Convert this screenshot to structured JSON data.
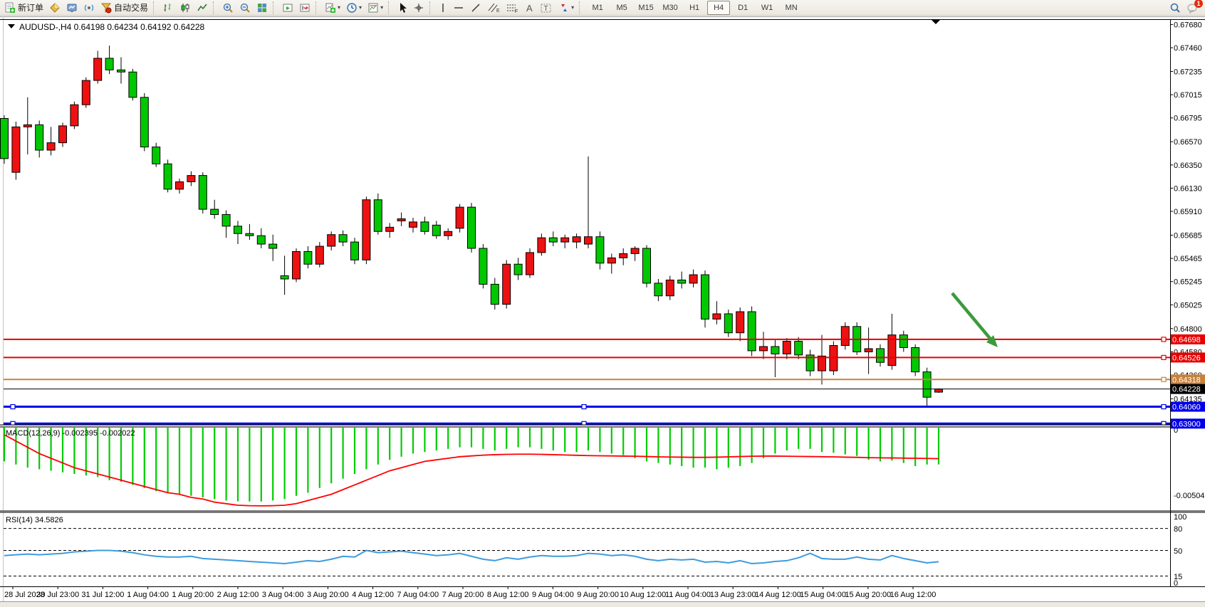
{
  "toolbar": {
    "new_order_label": "新订单",
    "autotrading_label": "自动交易",
    "timeframes": [
      "M1",
      "M5",
      "M15",
      "M30",
      "H1",
      "H4",
      "D1",
      "W1",
      "MN"
    ],
    "active_timeframe": "H4",
    "notification_badge": "1"
  },
  "chart": {
    "symbol": "AUDUSD-,H4",
    "open": "0.64198",
    "high": "0.64234",
    "low": "0.64192",
    "close": "0.64228"
  },
  "price_axis": {
    "ticks": [
      "0.67680",
      "0.67460",
      "0.67235",
      "0.67015",
      "0.66795",
      "0.66570",
      "0.66350",
      "0.66130",
      "0.65910",
      "0.65685",
      "0.65465",
      "0.65245",
      "0.65025",
      "0.64800",
      "0.64580",
      "0.64360",
      "0.64135"
    ]
  },
  "time_axis": {
    "labels": [
      "28 Jul 2023",
      "30 Jul 23:00",
      "31 Jul 12:00",
      "1 Aug 04:00",
      "1 Aug 20:00",
      "2 Aug 12:00",
      "3 Aug 04:00",
      "3 Aug 20:00",
      "4 Aug 12:00",
      "7 Aug 04:00",
      "7 Aug 20:00",
      "8 Aug 12:00",
      "9 Aug 04:00",
      "9 Aug 20:00",
      "10 Aug 12:00",
      "11 Aug 04:00",
      "13 Aug 23:00",
      "14 Aug 12:00",
      "15 Aug 04:00",
      "15 Aug 20:00",
      "16 Aug 12:00"
    ]
  },
  "hlines": [
    {
      "price": 0.64698,
      "label": "0.64698",
      "color": "#E80000",
      "width": 2
    },
    {
      "price": 0.64526,
      "label": "0.64526",
      "color": "#E80000",
      "width": 2
    },
    {
      "price": 0.64318,
      "label": "0.64318",
      "color": "#C8823C",
      "width": 2
    },
    {
      "price": 0.64228,
      "label": "0.64228",
      "color": "#000000",
      "width": 1
    },
    {
      "price": 0.6406,
      "label": "0.64060",
      "color": "#0000E8",
      "width": 3
    },
    {
      "price": 0.639,
      "label": "0.63900",
      "color": "#0000E8",
      "width": 3
    }
  ],
  "chart_data": {
    "type": "candlestick",
    "title": "AUDUSD-,H4  0.64198 0.64234 0.64192 0.64228",
    "symbol": "AUDUSD",
    "timeframe": "H4",
    "up_color": "#EE1111",
    "down_color": "#00C800",
    "ylim": [
      0.6388,
      0.6773
    ],
    "candles": [
      [
        0.6679,
        0.6682,
        0.6636,
        0.6641
      ],
      [
        0.6628,
        0.6676,
        0.6621,
        0.6671
      ],
      [
        0.6671,
        0.6699,
        0.6645,
        0.6673
      ],
      [
        0.6673,
        0.6677,
        0.6642,
        0.6649
      ],
      [
        0.6649,
        0.6671,
        0.6644,
        0.6656
      ],
      [
        0.6656,
        0.6675,
        0.6652,
        0.6672
      ],
      [
        0.6672,
        0.6695,
        0.6669,
        0.6692
      ],
      [
        0.6692,
        0.6718,
        0.6689,
        0.6715
      ],
      [
        0.6715,
        0.6743,
        0.6712,
        0.6736
      ],
      [
        0.6736,
        0.6748,
        0.6721,
        0.6725
      ],
      [
        0.6725,
        0.6737,
        0.6712,
        0.6723
      ],
      [
        0.6723,
        0.6726,
        0.6696,
        0.6699
      ],
      [
        0.6699,
        0.6703,
        0.6648,
        0.6652
      ],
      [
        0.6652,
        0.6656,
        0.6633,
        0.6636
      ],
      [
        0.6636,
        0.664,
        0.6609,
        0.6612
      ],
      [
        0.6612,
        0.6622,
        0.6608,
        0.6619
      ],
      [
        0.6619,
        0.6629,
        0.6615,
        0.6625
      ],
      [
        0.6625,
        0.6628,
        0.6589,
        0.6593
      ],
      [
        0.6593,
        0.6602,
        0.6584,
        0.6588
      ],
      [
        0.6588,
        0.6592,
        0.6566,
        0.6577
      ],
      [
        0.6577,
        0.6582,
        0.656,
        0.657
      ],
      [
        0.657,
        0.6579,
        0.6564,
        0.6568
      ],
      [
        0.6568,
        0.6575,
        0.6556,
        0.656
      ],
      [
        0.656,
        0.6569,
        0.6544,
        0.6556
      ],
      [
        0.653,
        0.6549,
        0.6512,
        0.6527
      ],
      [
        0.6527,
        0.6556,
        0.6524,
        0.6553
      ],
      [
        0.6553,
        0.6558,
        0.6537,
        0.6541
      ],
      [
        0.6541,
        0.6562,
        0.6538,
        0.6558
      ],
      [
        0.6558,
        0.6572,
        0.6554,
        0.6569
      ],
      [
        0.6569,
        0.6573,
        0.6558,
        0.6562
      ],
      [
        0.6562,
        0.6566,
        0.6541,
        0.6545
      ],
      [
        0.6545,
        0.6605,
        0.6541,
        0.6602
      ],
      [
        0.6602,
        0.6608,
        0.6569,
        0.6572
      ],
      [
        0.6572,
        0.658,
        0.6566,
        0.6576
      ],
      [
        0.6582,
        0.659,
        0.6577,
        0.6584
      ],
      [
        0.6576,
        0.6585,
        0.6571,
        0.6581
      ],
      [
        0.6581,
        0.6586,
        0.6569,
        0.6572
      ],
      [
        0.6578,
        0.6582,
        0.6565,
        0.6568
      ],
      [
        0.6568,
        0.6575,
        0.6564,
        0.6572
      ],
      [
        0.6575,
        0.6598,
        0.6571,
        0.6595
      ],
      [
        0.6595,
        0.6599,
        0.6552,
        0.6556
      ],
      [
        0.6556,
        0.656,
        0.6518,
        0.6522
      ],
      [
        0.6522,
        0.6528,
        0.6498,
        0.6503
      ],
      [
        0.6503,
        0.6545,
        0.6499,
        0.6541
      ],
      [
        0.6541,
        0.6547,
        0.6526,
        0.6531
      ],
      [
        0.6531,
        0.6556,
        0.6528,
        0.6552
      ],
      [
        0.6552,
        0.657,
        0.6549,
        0.6566
      ],
      [
        0.6566,
        0.6572,
        0.6558,
        0.6562
      ],
      [
        0.6562,
        0.6569,
        0.6556,
        0.6566
      ],
      [
        0.6562,
        0.657,
        0.6556,
        0.6567
      ],
      [
        0.656,
        0.6643,
        0.6556,
        0.6567
      ],
      [
        0.6567,
        0.6572,
        0.6536,
        0.6542
      ],
      [
        0.6542,
        0.6551,
        0.6532,
        0.6547
      ],
      [
        0.6547,
        0.6556,
        0.654,
        0.6551
      ],
      [
        0.6551,
        0.6558,
        0.6544,
        0.6556
      ],
      [
        0.6556,
        0.6559,
        0.6519,
        0.6523
      ],
      [
        0.6523,
        0.6527,
        0.6506,
        0.6511
      ],
      [
        0.6511,
        0.653,
        0.6507,
        0.6526
      ],
      [
        0.6526,
        0.6534,
        0.6518,
        0.6523
      ],
      [
        0.6523,
        0.6536,
        0.6519,
        0.6531
      ],
      [
        0.6531,
        0.6535,
        0.6481,
        0.6489
      ],
      [
        0.6489,
        0.6506,
        0.6484,
        0.6494
      ],
      [
        0.6494,
        0.6498,
        0.6472,
        0.6476
      ],
      [
        0.6476,
        0.65,
        0.6468,
        0.6496
      ],
      [
        0.6496,
        0.6501,
        0.6454,
        0.6459
      ],
      [
        0.6459,
        0.6477,
        0.6451,
        0.6463
      ],
      [
        0.6463,
        0.6469,
        0.6434,
        0.6456
      ],
      [
        0.6456,
        0.6471,
        0.6451,
        0.6468
      ],
      [
        0.6468,
        0.6472,
        0.6451,
        0.6455
      ],
      [
        0.6455,
        0.646,
        0.6435,
        0.644
      ],
      [
        0.644,
        0.6474,
        0.6427,
        0.6454
      ],
      [
        0.644,
        0.6468,
        0.6436,
        0.6464
      ],
      [
        0.6464,
        0.6486,
        0.646,
        0.6482
      ],
      [
        0.6482,
        0.6486,
        0.6455,
        0.6458
      ],
      [
        0.6458,
        0.6481,
        0.6437,
        0.6461
      ],
      [
        0.6461,
        0.6465,
        0.6444,
        0.6448
      ],
      [
        0.6445,
        0.6494,
        0.6441,
        0.6474
      ],
      [
        0.6474,
        0.6478,
        0.6458,
        0.6462
      ],
      [
        0.6462,
        0.6465,
        0.6435,
        0.6439
      ],
      [
        0.6439,
        0.6443,
        0.6407,
        0.6415
      ],
      [
        0.64198,
        0.64234,
        0.64192,
        0.64228
      ]
    ],
    "indicators": {
      "macd": {
        "label": "MACD(12,26,9)",
        "value": "-0.002395",
        "signal_value": "-0.002022",
        "zero_label": "0",
        "scale_min_label": "-0.005043",
        "histogram_color": "#00CC00",
        "signal_color": "#FF0000",
        "histogram": [
          -0.0022,
          -0.0024,
          -0.0026,
          -0.0027,
          -0.0028,
          -0.0029,
          -0.003,
          -0.0031,
          -0.0032,
          -0.0034,
          -0.0035,
          -0.0037,
          -0.0039,
          -0.0041,
          -0.0042,
          -0.0043,
          -0.0044,
          -0.0045,
          -0.0046,
          -0.0047,
          -0.00475,
          -0.00476,
          -0.00476,
          -0.0047,
          -0.0046,
          -0.0044,
          -0.0042,
          -0.0039,
          -0.0036,
          -0.0033,
          -0.003,
          -0.0027,
          -0.0024,
          -0.0021,
          -0.0019,
          -0.0017,
          -0.0016,
          -0.0015,
          -0.0014,
          -0.0013,
          -0.0013,
          -0.0014,
          -0.0015,
          -0.0014,
          -0.0013,
          -0.0013,
          -0.0014,
          -0.0015,
          -0.0016,
          -0.0016,
          -0.0015,
          -0.0016,
          -0.0017,
          -0.0018,
          -0.002,
          -0.0022,
          -0.0023,
          -0.0024,
          -0.0025,
          -0.0026,
          -0.0026,
          -0.0027,
          -0.0026,
          -0.0025,
          -0.0023,
          -0.002,
          -0.0017,
          -0.0015,
          -0.0014,
          -0.0014,
          -0.0016,
          -0.00165,
          -0.00175,
          -0.00185,
          -0.0021,
          -0.0022,
          -0.00215,
          -0.0023,
          -0.0025,
          -0.0024,
          -0.002395
        ],
        "signal": [
          -0.0005,
          -0.0009,
          -0.0013,
          -0.0017,
          -0.002,
          -0.0023,
          -0.0026,
          -0.0028,
          -0.003,
          -0.0032,
          -0.0034,
          -0.0036,
          -0.0038,
          -0.004,
          -0.0042,
          -0.0043,
          -0.0045,
          -0.0046,
          -0.0048,
          -0.0049,
          -0.005,
          -0.00503,
          -0.00504,
          -0.00503,
          -0.005,
          -0.0049,
          -0.0047,
          -0.0045,
          -0.0043,
          -0.004,
          -0.0037,
          -0.0034,
          -0.0031,
          -0.0028,
          -0.0026,
          -0.0024,
          -0.0022,
          -0.0021,
          -0.002,
          -0.0019,
          -0.00185,
          -0.0018,
          -0.00177,
          -0.00175,
          -0.00174,
          -0.00174,
          -0.00175,
          -0.00177,
          -0.00179,
          -0.00181,
          -0.00183,
          -0.00184,
          -0.00185,
          -0.00186,
          -0.00187,
          -0.00189,
          -0.00191,
          -0.00192,
          -0.00193,
          -0.00194,
          -0.00194,
          -0.00193,
          -0.00191,
          -0.00189,
          -0.00187,
          -0.00186,
          -0.00186,
          -0.00187,
          -0.00188,
          -0.00189,
          -0.0019,
          -0.00191,
          -0.00193,
          -0.00194,
          -0.00196,
          -0.00197,
          -0.00198,
          -0.00199,
          -0.002,
          -0.00201,
          -0.002022
        ]
      },
      "rsi": {
        "label": "RSI(14)",
        "value": "34.5826",
        "color": "#3E9BDE",
        "levels": [
          80,
          50,
          15
        ],
        "axis_labels": [
          "100",
          "80",
          "50",
          "15",
          "0"
        ],
        "values": [
          43,
          44,
          45,
          44,
          45,
          46,
          48,
          49,
          50,
          50,
          49,
          47,
          44,
          42,
          41,
          41,
          42,
          39,
          38,
          37,
          36,
          35,
          34,
          33,
          32,
          34,
          36,
          35,
          38,
          42,
          41,
          50,
          47,
          48,
          49,
          47,
          45,
          43,
          44,
          46,
          42,
          38,
          36,
          40,
          38,
          41,
          43,
          42,
          42,
          43,
          46,
          45,
          43,
          44,
          42,
          38,
          36,
          38,
          37,
          38,
          34,
          35,
          33,
          36,
          32,
          33,
          35,
          36,
          40,
          46,
          39,
          38,
          38,
          41,
          38,
          37,
          43,
          39,
          36,
          33,
          34.5826
        ]
      }
    },
    "annotations": {
      "arrow": {
        "from": [
          1337,
          412
        ],
        "to": [
          1401,
          488
        ],
        "color": "#3B9B3B"
      }
    }
  }
}
